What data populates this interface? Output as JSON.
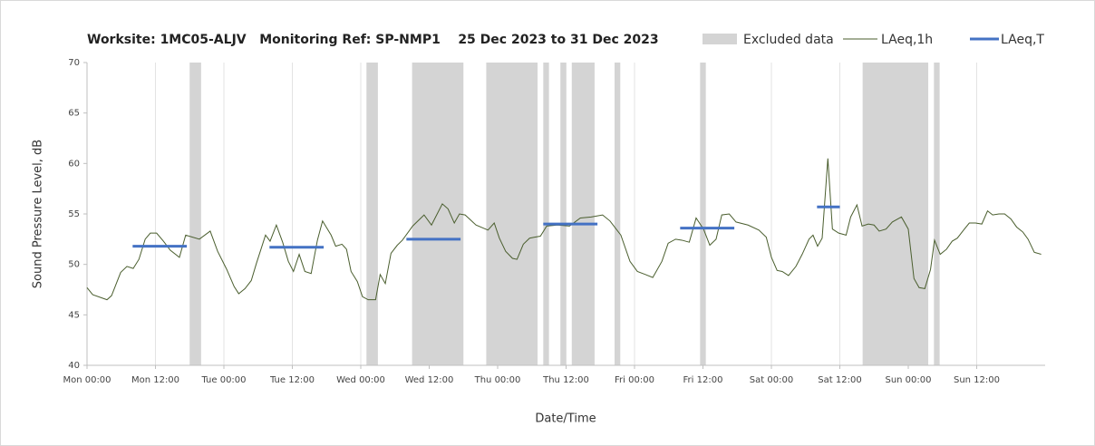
{
  "chart_data": {
    "type": "line",
    "title": "Worksite: 1MC05-ALJV   Monitoring Ref: SP-NMP1    25 Dec 2023 to 31 Dec 2023",
    "x_label": "Date/Time",
    "y_label": "Sound Pressure Level, dB",
    "xlim": [
      0,
      168
    ],
    "ylim": [
      40,
      70
    ],
    "xticks": [
      {
        "value": 0,
        "label": "Mon 00:00"
      },
      {
        "value": 12,
        "label": "Mon 12:00"
      },
      {
        "value": 24,
        "label": "Tue 00:00"
      },
      {
        "value": 36,
        "label": "Tue 12:00"
      },
      {
        "value": 48,
        "label": "Wed 00:00"
      },
      {
        "value": 60,
        "label": "Wed 12:00"
      },
      {
        "value": 72,
        "label": "Thu 00:00"
      },
      {
        "value": 84,
        "label": "Thu 12:00"
      },
      {
        "value": 96,
        "label": "Fri 00:00"
      },
      {
        "value": 108,
        "label": "Fri 12:00"
      },
      {
        "value": 120,
        "label": "Sat 00:00"
      },
      {
        "value": 132,
        "label": "Sat 12:00"
      },
      {
        "value": 144,
        "label": "Sun 00:00"
      },
      {
        "value": 156,
        "label": "Sun 12:00"
      }
    ],
    "yticks": [
      40,
      45,
      50,
      55,
      60,
      65,
      70
    ],
    "grid": "x",
    "x": [
      0,
      1,
      3.5,
      4.3,
      5.9,
      7.0,
      8.1,
      9.1,
      10.2,
      11.1,
      12.2,
      13.4,
      14.6,
      16.2,
      17.3,
      19.7,
      21.6,
      22.9,
      24.5,
      25.8,
      26.6,
      27.7,
      28.8,
      29.7,
      31.3,
      32.1,
      33.2,
      34.3,
      35.3,
      36.2,
      37.2,
      38.2,
      39.3,
      40.4,
      41.3,
      42.8,
      43.6,
      44.7,
      45.5,
      46.3,
      47.4,
      48.3,
      49.3,
      50.6,
      51.4,
      52.3,
      53.3,
      54.4,
      55.3,
      57.1,
      59.1,
      60.4,
      62.3,
      63.3,
      64.4,
      65.3,
      66.3,
      68.2,
      70.3,
      71.4,
      72.3,
      73.4,
      74.6,
      75.4,
      76.5,
      77.6,
      78.5,
      79.5,
      80.6,
      82.5,
      84.6,
      86.5,
      88.4,
      90.4,
      91.7,
      93.6,
      95.2,
      96.5,
      97.9,
      99.2,
      100.8,
      101.9,
      103.2,
      104.3,
      105.6,
      106.8,
      108.1,
      109.2,
      110.3,
      111.3,
      112.6,
      113.8,
      115.9,
      117.8,
      119.1,
      120.0,
      121.0,
      121.9,
      123.0,
      124.3,
      125.4,
      126.6,
      127.3,
      128.1,
      128.9,
      129.9,
      130.7,
      131.8,
      133.1,
      133.9,
      135.0,
      135.9,
      137.0,
      138.0,
      138.9,
      140.1,
      141.2,
      142.8,
      144.0,
      145.0,
      145.9,
      146.9,
      147.9,
      148.6,
      149.6,
      150.7,
      151.7,
      152.6,
      153.7,
      154.7,
      155.8,
      156.9,
      157.9,
      158.8,
      159.9,
      160.9,
      162.0,
      163.0,
      164.1,
      165.0,
      166.1,
      167.3
    ],
    "series": [
      {
        "name": "LAeq,1h",
        "color": "#4a5e2e",
        "values": [
          47.7,
          47.0,
          46.5,
          46.9,
          49.2,
          49.8,
          49.6,
          50.5,
          52.5,
          53.1,
          53.1,
          52.3,
          51.4,
          50.7,
          52.9,
          52.5,
          53.3,
          51.3,
          49.5,
          47.8,
          47.1,
          47.6,
          48.4,
          50.1,
          52.9,
          52.3,
          53.9,
          52.2,
          50.3,
          49.3,
          51.0,
          49.3,
          49.1,
          52.4,
          54.3,
          52.9,
          51.8,
          52.0,
          51.5,
          49.3,
          48.3,
          46.8,
          46.5,
          46.5,
          49.0,
          48.1,
          51.1,
          51.9,
          52.4,
          53.8,
          54.9,
          53.9,
          56.0,
          55.5,
          54.1,
          55.0,
          54.9,
          53.9,
          53.4,
          54.1,
          52.6,
          51.3,
          50.6,
          50.5,
          52.0,
          52.6,
          52.7,
          52.8,
          53.8,
          53.9,
          53.8,
          54.6,
          54.7,
          54.9,
          54.3,
          52.9,
          50.3,
          49.3,
          49.0,
          48.7,
          50.3,
          52.1,
          52.5,
          52.4,
          52.2,
          54.6,
          53.5,
          51.9,
          52.5,
          54.9,
          55.0,
          54.2,
          53.9,
          53.4,
          52.7,
          50.7,
          49.4,
          49.3,
          48.9,
          49.8,
          51.0,
          52.5,
          52.9,
          51.8,
          52.6,
          60.5,
          53.5,
          53.1,
          52.9,
          54.7,
          55.9,
          53.8,
          54.0,
          53.9,
          53.3,
          53.5,
          54.2,
          54.7,
          53.5,
          48.6,
          47.7,
          47.6,
          49.5,
          52.4,
          51.0,
          51.5,
          52.3,
          52.6,
          53.4,
          54.1,
          54.1,
          54.0,
          55.3,
          54.9,
          55.0,
          55.0,
          54.5,
          53.7,
          53.2,
          52.5,
          51.2,
          51.0
        ]
      }
    ],
    "excluded": {
      "name": "Excluded data",
      "color": "#d4d4d4",
      "ranges": [
        [
          18,
          20
        ],
        [
          49,
          51
        ],
        [
          57,
          66
        ],
        [
          70,
          79
        ],
        [
          80,
          81
        ],
        [
          83,
          84
        ],
        [
          85,
          89
        ],
        [
          92.5,
          93.5
        ],
        [
          107.5,
          108.5
        ],
        [
          136,
          147.5
        ],
        [
          148.5,
          149.5
        ]
      ]
    },
    "laeq_t": {
      "name": "LAeq,T",
      "color": "#4472c4",
      "segments": [
        {
          "x": [
            8,
            17.5
          ],
          "value": 51.8
        },
        {
          "x": [
            32,
            41.5
          ],
          "value": 51.7
        },
        {
          "x": [
            56,
            65.5
          ],
          "value": 52.5
        },
        {
          "x": [
            80,
            89.5
          ],
          "value": 54.0
        },
        {
          "x": [
            104,
            113.5
          ],
          "value": 53.6
        },
        {
          "x": [
            128,
            132
          ],
          "value": 55.7
        }
      ]
    }
  }
}
